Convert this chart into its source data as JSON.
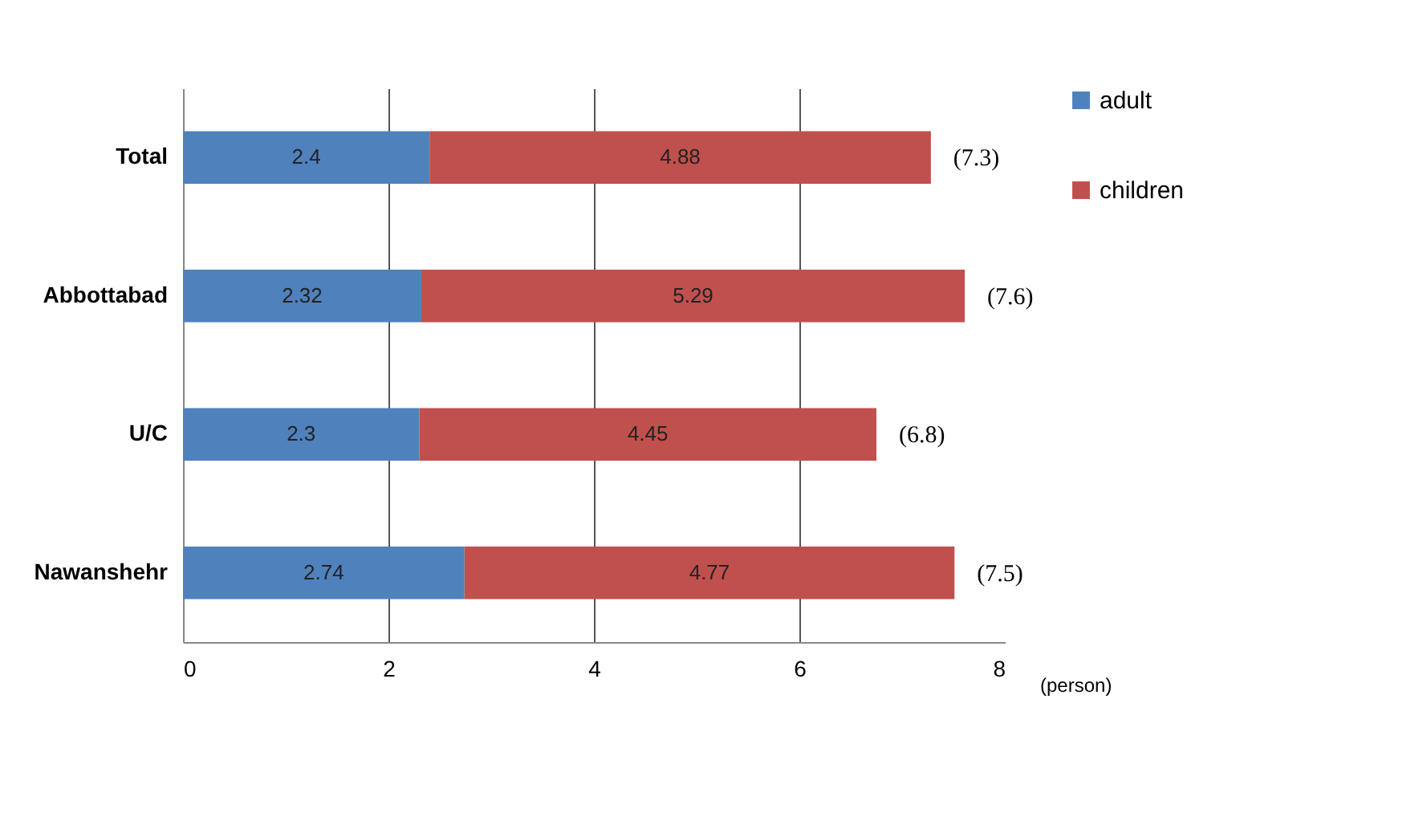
{
  "chart_data": {
    "type": "bar",
    "orientation": "horizontal",
    "stacked": true,
    "categories": [
      "Total",
      "Abbottabad",
      "U/C",
      "Nawanshehr"
    ],
    "series": [
      {
        "name": "adult",
        "color": "#4f81bd",
        "values": [
          2.4,
          2.32,
          2.3,
          2.74
        ]
      },
      {
        "name": "children",
        "color": "#c0504d",
        "values": [
          4.88,
          5.29,
          4.45,
          4.77
        ]
      }
    ],
    "data_labels": true,
    "totals": [
      "(7.3)",
      "(7.6)",
      "(6.8)",
      "(7.5)"
    ],
    "xlabel": "(person)",
    "xlim": [
      0,
      8
    ],
    "xticks": [
      0,
      2,
      4,
      6,
      8
    ],
    "grid": "x",
    "legend": "right"
  }
}
